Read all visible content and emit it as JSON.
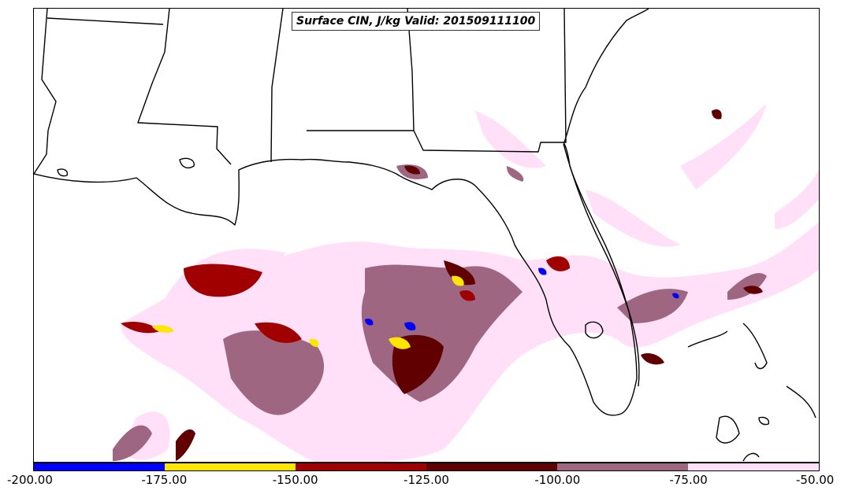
{
  "title": "Surface CIN, J/kg Valid: 201509111100",
  "colorbar": {
    "segments": [
      {
        "from": -200,
        "to": -175,
        "color": "#0000ff"
      },
      {
        "from": -175,
        "to": -150,
        "color": "#ffe600"
      },
      {
        "from": -150,
        "to": -125,
        "color": "#a00000"
      },
      {
        "from": -125,
        "to": -100,
        "color": "#600000"
      },
      {
        "from": -100,
        "to": -75,
        "color": "#9e6680"
      },
      {
        "from": -75,
        "to": -50,
        "color": "#ffe0f8"
      }
    ],
    "labels": [
      "-200.00",
      "-175.00",
      "-150.00",
      "-125.00",
      "-100.00",
      "-75.00",
      "-50.00"
    ]
  }
}
